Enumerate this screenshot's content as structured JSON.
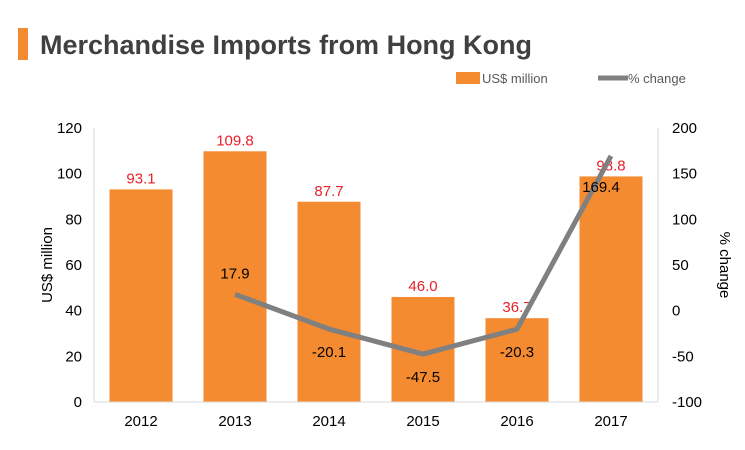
{
  "chart_data": {
    "type": "bar",
    "title": "Merchandise Imports from Hong Kong",
    "categories": [
      "2012",
      "2013",
      "2014",
      "2015",
      "2016",
      "2017"
    ],
    "series": [
      {
        "name": "US$ million",
        "type": "bar",
        "axis": "left",
        "values": [
          93.1,
          109.8,
          87.7,
          46.0,
          36.7,
          98.8
        ],
        "labels": [
          "93.1",
          "109.8",
          "87.7",
          "46.0",
          "36.7",
          "98.8"
        ],
        "color": "#f58b30",
        "label_color": "#e8212a"
      },
      {
        "name": "% change",
        "type": "line",
        "axis": "right",
        "values": [
          null,
          17.9,
          -20.1,
          -47.5,
          -20.3,
          169.4
        ],
        "labels": [
          null,
          "17.9",
          "-20.1",
          "-47.5",
          "-20.3",
          "169.4"
        ],
        "color": "#808080"
      }
    ],
    "ylabel": "US$ million",
    "y2label": "% change",
    "ylim": [
      0,
      120
    ],
    "y2lim": [
      -100,
      200
    ],
    "yticks": [
      "0",
      "20",
      "40",
      "60",
      "80",
      "100",
      "120"
    ],
    "y2ticks": [
      "-100",
      "-50",
      "0",
      "50",
      "100",
      "150",
      "200"
    ],
    "legend_position": "top-right",
    "grid": false,
    "accent_color": "#f58b30"
  }
}
